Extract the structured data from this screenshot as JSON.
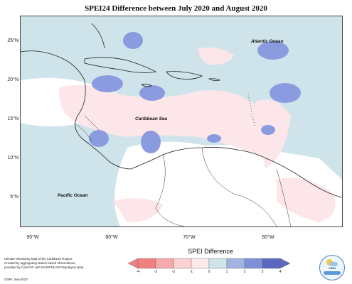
{
  "title": "SPEI24 Difference between July 2020 and August 2020",
  "map": {
    "lat_ticks": [
      "25°N",
      "20°N",
      "15°N",
      "10°N",
      "5°N"
    ],
    "lon_ticks": [
      "90°W",
      "80°W",
      "70°W",
      "60°W"
    ],
    "labels": {
      "atlantic": "Atlantic Ocean",
      "caribbean": "Caribbean Sea",
      "pacific": "Pacific Ocean"
    }
  },
  "footer": {
    "lines": [
      "Climate Monitoring Map of the Caribbean Region.",
      "Created by aggregating station based observations,",
      "provided by CariCOF, with NCEP/NCAR Reanalysis Data."
    ],
    "credit": "CIMH: Sep-2020"
  },
  "legend": {
    "title": "SPEI Difference",
    "ticks": [
      "-4",
      "-3",
      "-2",
      "-1",
      "0",
      "1",
      "2",
      "3",
      "4"
    ],
    "colors": [
      "#f08080",
      "#f8aaaa",
      "#fbd0d0",
      "#fde9e9",
      "#cfe3ea",
      "#a3b3e0",
      "#7d8fd6",
      "#5a68c0"
    ]
  },
  "logo": {
    "text": "CIMH"
  },
  "colors": {
    "positive_light": "#cfe3ea",
    "positive_mid": "#8b9be0",
    "negative_light": "#fde6e9"
  }
}
